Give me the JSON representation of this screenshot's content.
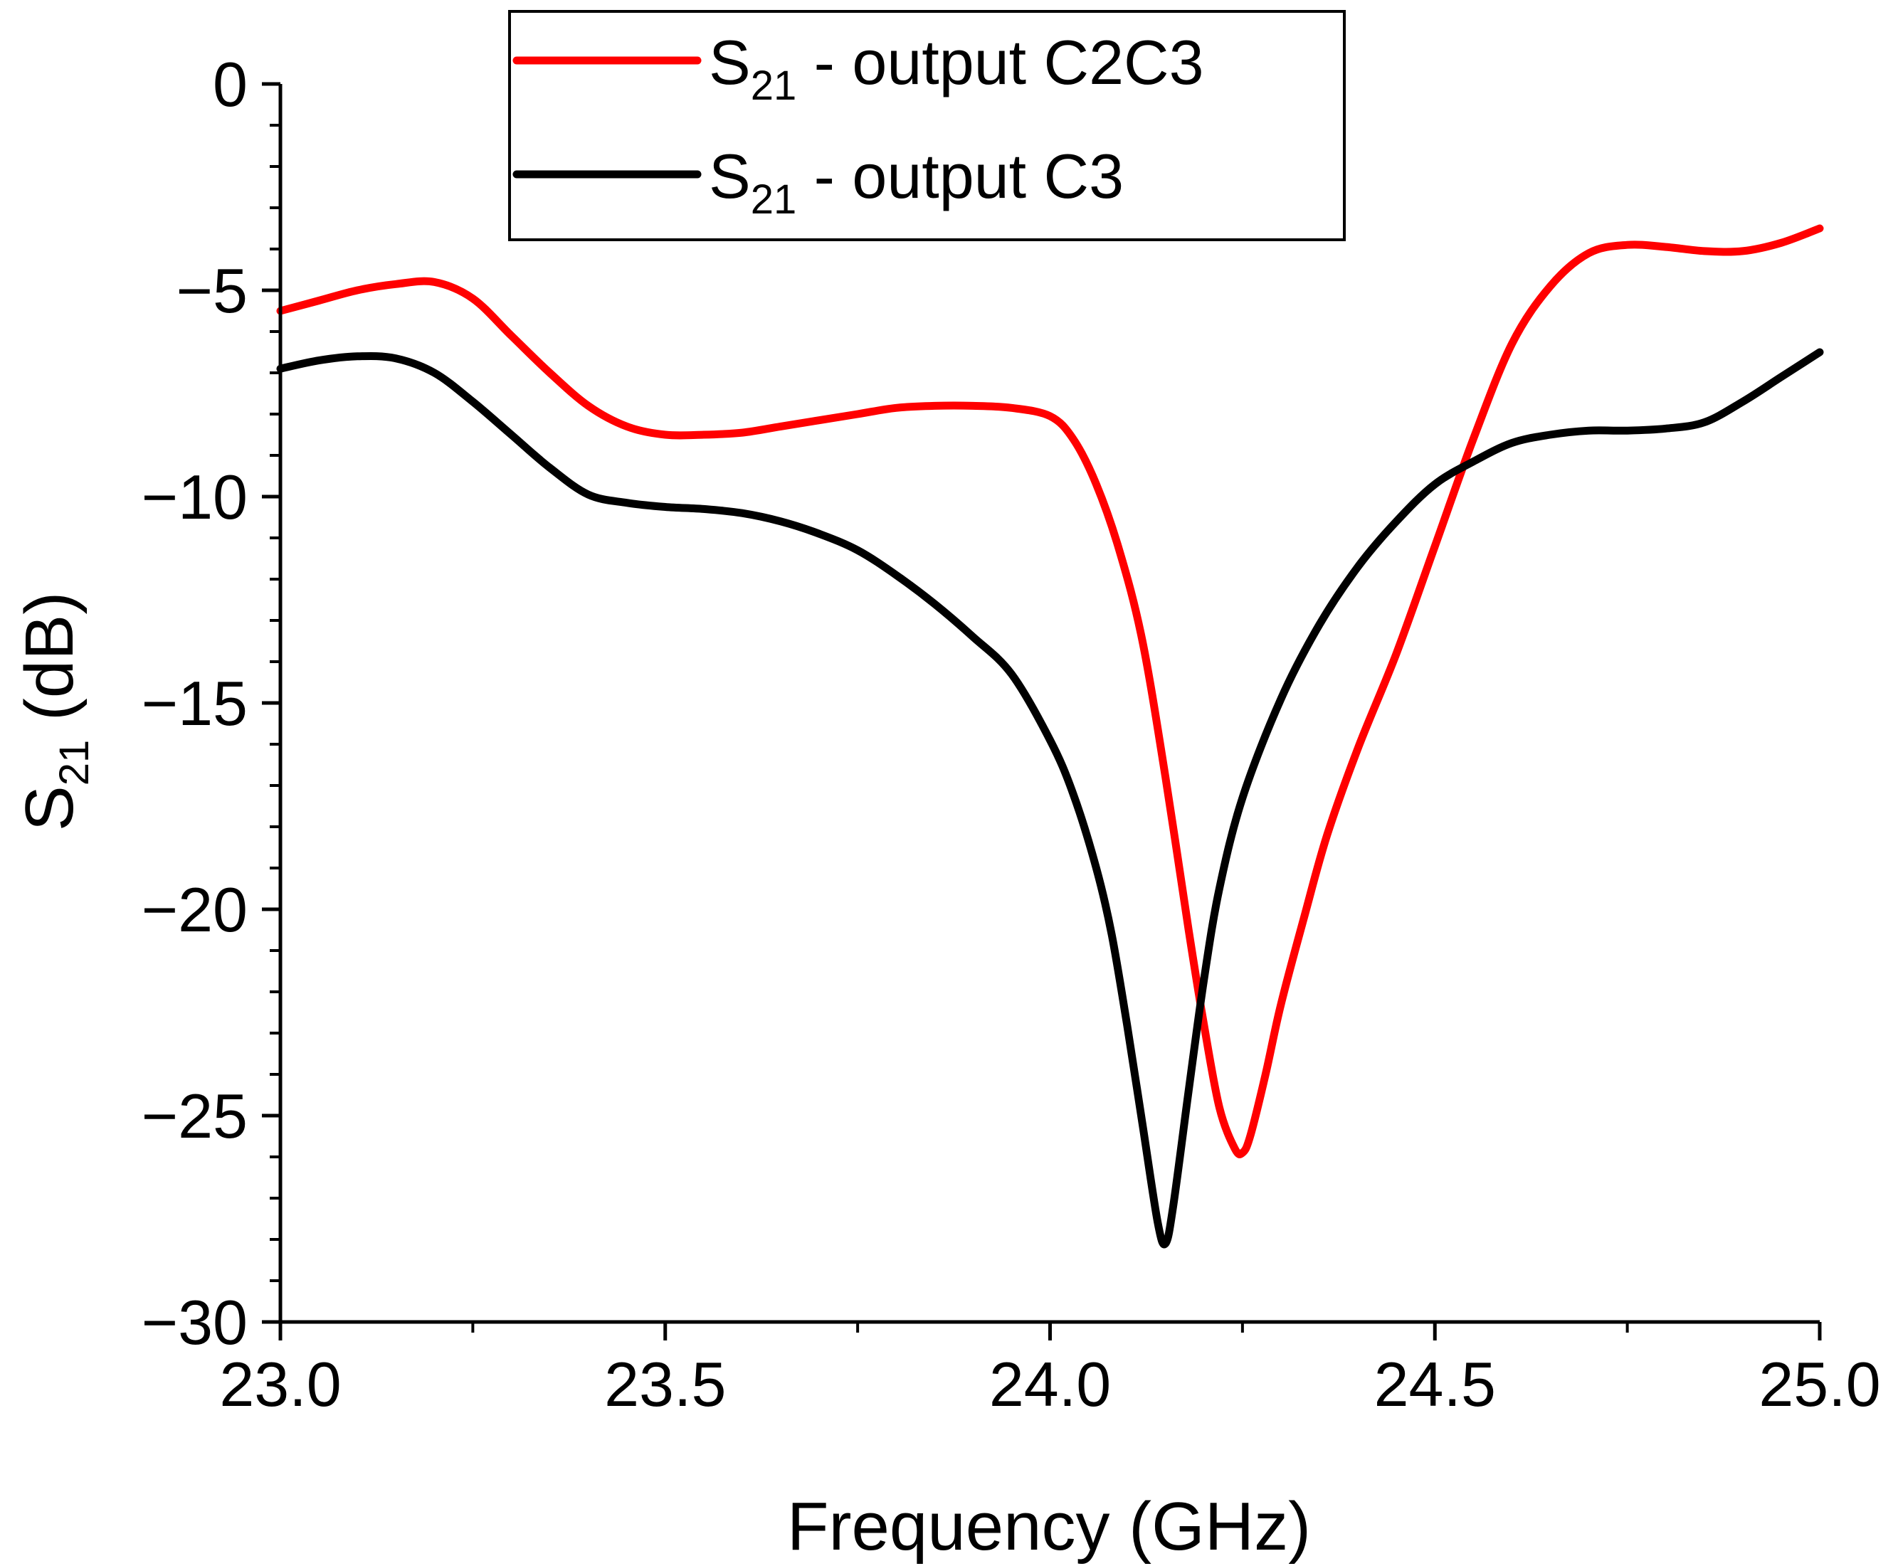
{
  "chart_data": {
    "type": "line",
    "title": "",
    "xlabel": "Frequency (GHz)",
    "ylabel": {
      "main": "S",
      "sub": "21",
      "rest": " (dB)"
    },
    "xlim": [
      23.0,
      25.0
    ],
    "ylim": [
      -30,
      0
    ],
    "xticks": [
      23.0,
      23.5,
      24.0,
      24.5,
      25.0
    ],
    "xtick_labels": [
      "23.0",
      "23.5",
      "24.0",
      "24.5",
      "25.0"
    ],
    "yticks": [
      0,
      -5,
      -10,
      -15,
      -20,
      -25,
      -30
    ],
    "ytick_labels": [
      "0",
      "−5",
      "−10",
      "−15",
      "−20",
      "−25",
      "−30"
    ],
    "grid": false,
    "legend_position": "top-center",
    "series": [
      {
        "name": "S21 - output C2C3",
        "label_main": "S",
        "label_sub": "21",
        "label_rest": " - output C2C3",
        "color": "#ff0000",
        "x": [
          23.0,
          23.05,
          23.1,
          23.15,
          23.2,
          23.25,
          23.3,
          23.35,
          23.4,
          23.45,
          23.5,
          23.55,
          23.6,
          23.65,
          23.7,
          23.75,
          23.8,
          23.85,
          23.9,
          23.95,
          24.0,
          24.03,
          24.06,
          24.09,
          24.12,
          24.15,
          24.18,
          24.2,
          24.22,
          24.24,
          24.25,
          24.26,
          24.28,
          24.3,
          24.33,
          24.36,
          24.4,
          24.45,
          24.5,
          24.55,
          24.6,
          24.65,
          24.7,
          24.75,
          24.8,
          24.85,
          24.9,
          24.95,
          25.0
        ],
        "y": [
          -5.5,
          -5.25,
          -5.0,
          -4.85,
          -4.8,
          -5.2,
          -6.1,
          -7.0,
          -7.8,
          -8.3,
          -8.5,
          -8.5,
          -8.45,
          -8.3,
          -8.15,
          -8.0,
          -7.85,
          -7.8,
          -7.8,
          -7.85,
          -8.05,
          -8.6,
          -9.7,
          -11.3,
          -13.5,
          -16.8,
          -20.5,
          -22.8,
          -24.8,
          -25.8,
          -25.9,
          -25.5,
          -24.0,
          -22.3,
          -20.2,
          -18.2,
          -16.1,
          -13.8,
          -11.2,
          -8.6,
          -6.3,
          -4.9,
          -4.1,
          -3.9,
          -3.95,
          -4.05,
          -4.05,
          -3.85,
          -3.5
        ]
      },
      {
        "name": "S21 - output C3",
        "label_main": "S",
        "label_sub": "21",
        "label_rest": " - output C3",
        "color": "#000000",
        "x": [
          23.0,
          23.05,
          23.1,
          23.15,
          23.2,
          23.25,
          23.3,
          23.35,
          23.4,
          23.45,
          23.5,
          23.55,
          23.6,
          23.65,
          23.7,
          23.75,
          23.8,
          23.85,
          23.9,
          23.95,
          24.0,
          24.03,
          24.06,
          24.08,
          24.1,
          24.12,
          24.14,
          24.15,
          24.16,
          24.18,
          24.2,
          24.22,
          24.25,
          24.3,
          24.35,
          24.4,
          24.45,
          24.5,
          24.55,
          24.6,
          24.65,
          24.7,
          24.75,
          24.8,
          24.85,
          24.9,
          24.95,
          25.0
        ],
        "y": [
          -6.9,
          -6.7,
          -6.6,
          -6.65,
          -7.0,
          -7.7,
          -8.5,
          -9.3,
          -9.95,
          -10.15,
          -10.25,
          -10.3,
          -10.4,
          -10.6,
          -10.9,
          -11.3,
          -11.9,
          -12.6,
          -13.4,
          -14.3,
          -15.9,
          -17.2,
          -19.0,
          -20.6,
          -22.8,
          -25.2,
          -27.6,
          -28.1,
          -27.2,
          -24.4,
          -21.7,
          -19.5,
          -17.3,
          -14.9,
          -13.1,
          -11.7,
          -10.6,
          -9.7,
          -9.15,
          -8.7,
          -8.5,
          -8.4,
          -8.4,
          -8.35,
          -8.2,
          -7.7,
          -7.1,
          -6.5
        ]
      }
    ]
  }
}
